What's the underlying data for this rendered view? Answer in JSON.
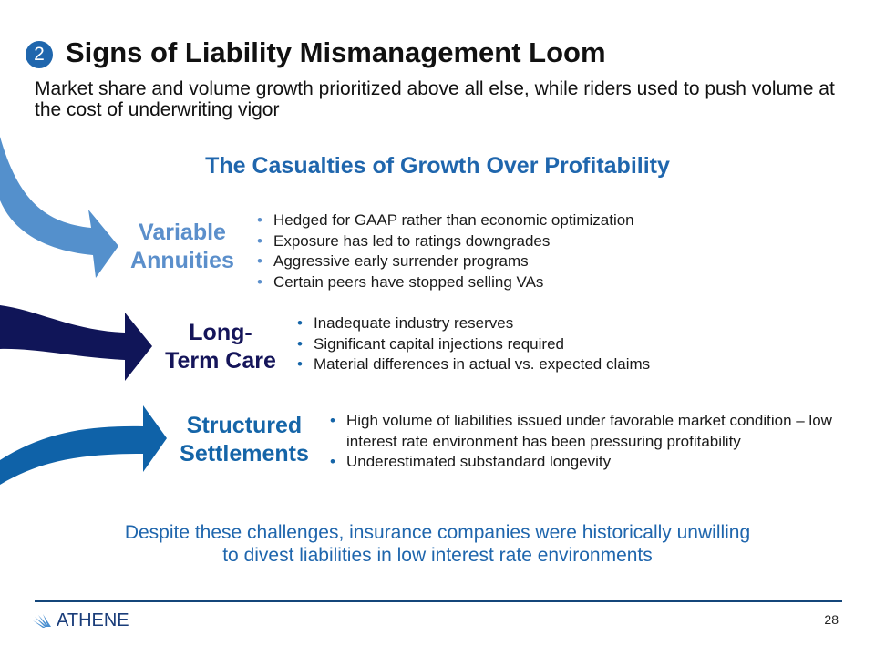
{
  "header": {
    "badge": "2",
    "title": "Signs of Liability Mismanagement Loom",
    "subtitle": "Market share and volume growth prioritized above all else, while riders used to push volume at the cost of underwriting vigor"
  },
  "section_title": "The Casualties of Growth Over Profitability",
  "categories": [
    {
      "label_line1": "Variable",
      "label_line2": "Annuities",
      "color": "#5b8fcb",
      "bullets": [
        "Hedged for GAAP rather than economic optimization",
        "Exposure has led to ratings downgrades",
        "Aggressive early surrender programs",
        "Certain peers have stopped selling VAs"
      ]
    },
    {
      "label_line1": "Long-",
      "label_line2": "Term Care",
      "color": "#15155a",
      "bullets": [
        "Inadequate industry reserves",
        "Significant capital injections required",
        "Material differences in actual vs. expected claims"
      ]
    },
    {
      "label_line1": "Structured",
      "label_line2": "Settlements",
      "color": "#1565a8",
      "bullets": [
        "High volume of liabilities issued under favorable market condition – low interest rate environment has been pressuring profitability",
        "Underestimated substandard longevity"
      ]
    }
  ],
  "conclusion": "Despite these challenges, insurance companies were historically unwilling to divest liabilities in low interest rate environments",
  "footer": {
    "logo": "ATHENE",
    "page_number": "28"
  }
}
